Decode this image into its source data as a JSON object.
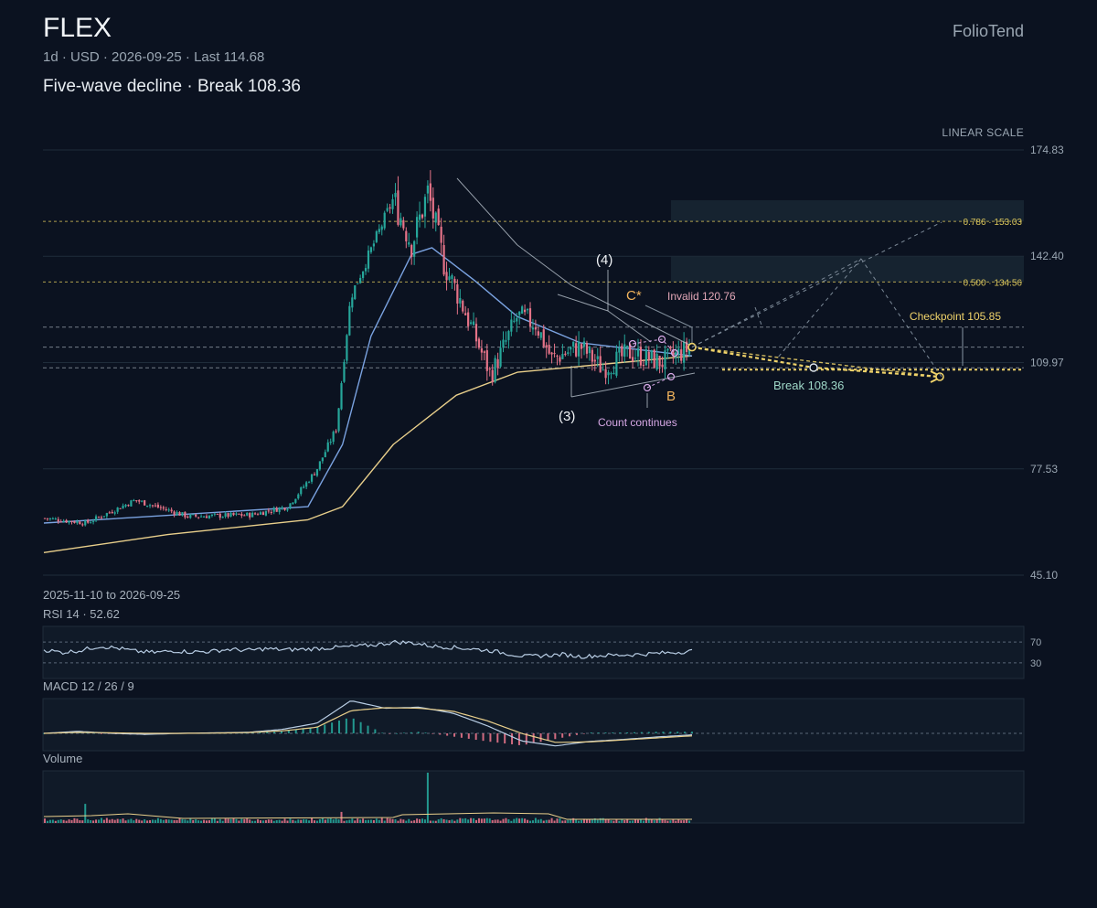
{
  "header": {
    "ticker": "FLEX",
    "subline": "1d · USD · 2026-09-25 · Last 114.68",
    "headline": "Five-wave decline · Break 108.36",
    "brand": "FolioTend",
    "scale_mode": "LINEAR SCALE",
    "date_range": "2025-11-10 to 2026-09-25"
  },
  "colors": {
    "background": "#0b1220",
    "up": "#26a69a",
    "down": "#e57388",
    "sma_fast": "#7aa2e0",
    "sma_slow": "#e9cf8b",
    "level": "#cdd6df",
    "fib": "#d9c45a",
    "projection": "#f0d36a",
    "wave_label": "#f2b45c",
    "count_label": "#d7a8e6"
  },
  "chart_data": [
    {
      "type": "candlestick",
      "period": "1d",
      "currency": "USD",
      "x_start": "2025-11-10",
      "x_end": "2026-09-25",
      "last": 114.68,
      "ylim": [
        45.1,
        174.83
      ],
      "y_ticks": [
        "174.83",
        "142.40",
        "109.97",
        "77.53",
        "45.10"
      ],
      "scale": "linear",
      "key_points": [
        {
          "date": "2025-11-10",
          "close": 62.5
        },
        {
          "date": "2025-12-01",
          "close": 61.0
        },
        {
          "date": "2025-12-25",
          "close": 68.0
        },
        {
          "date": "2026-01-20",
          "close": 63.0
        },
        {
          "date": "2026-02-20",
          "close": 63.5
        },
        {
          "date": "2026-03-10",
          "close": 66.0
        },
        {
          "date": "2026-03-24",
          "close": 77.0
        },
        {
          "date": "2026-04-03",
          "close": 90.0
        },
        {
          "date": "2026-04-10",
          "close": 130.0
        },
        {
          "date": "2026-04-24",
          "close": 150.0
        },
        {
          "date": "2026-05-01",
          "close": 160.0
        },
        {
          "date": "2026-05-10",
          "close": 146.0
        },
        {
          "date": "2026-05-18",
          "close": 162.0
        },
        {
          "date": "2026-05-26",
          "close": 140.0
        },
        {
          "date": "2026-06-03",
          "close": 129.0
        },
        {
          "date": "2026-06-18",
          "close": 106.0
        },
        {
          "date": "2026-07-01",
          "close": 124.0
        },
        {
          "date": "2026-07-10",
          "close": 122.0
        },
        {
          "date": "2026-07-18",
          "close": 111.0
        },
        {
          "date": "2026-08-01",
          "close": 115.0
        },
        {
          "date": "2026-08-12",
          "close": 108.0
        },
        {
          "date": "2026-08-25",
          "close": 113.0
        },
        {
          "date": "2026-09-10",
          "close": 110.0
        },
        {
          "date": "2026-09-25",
          "close": 114.68
        }
      ],
      "sma_fast_points": [
        {
          "date": "2025-11-10",
          "value": 61.0
        },
        {
          "date": "2026-03-20",
          "value": 66.0
        },
        {
          "date": "2026-04-06",
          "value": 85.0
        },
        {
          "date": "2026-04-20",
          "value": 118.0
        },
        {
          "date": "2026-05-10",
          "value": 143.0
        },
        {
          "date": "2026-05-20",
          "value": 145.0
        },
        {
          "date": "2026-06-10",
          "value": 135.0
        },
        {
          "date": "2026-07-01",
          "value": 124.0
        },
        {
          "date": "2026-08-01",
          "value": 116.0
        },
        {
          "date": "2026-09-25",
          "value": 112.0
        }
      ],
      "sma_slow_points": [
        {
          "date": "2025-11-10",
          "value": 52.0
        },
        {
          "date": "2026-01-10",
          "value": 57.5
        },
        {
          "date": "2026-03-20",
          "value": 62.0
        },
        {
          "date": "2026-04-06",
          "value": 66.0
        },
        {
          "date": "2026-05-01",
          "value": 85.0
        },
        {
          "date": "2026-06-01",
          "value": 100.0
        },
        {
          "date": "2026-07-01",
          "value": 107.0
        },
        {
          "date": "2026-09-25",
          "value": 112.0
        }
      ],
      "levels": [
        {
          "value": 153.03,
          "label": "0.786 · 153.03",
          "style": "fib"
        },
        {
          "value": 134.56,
          "label": "0.500 · 134.56",
          "style": "fib"
        },
        {
          "value": 120.76,
          "label": "Invalid 120.76",
          "style": "level"
        },
        {
          "value": 114.68,
          "label": "",
          "style": "level"
        },
        {
          "value": 108.36,
          "label": "Break 108.36",
          "style": "level"
        },
        {
          "value": 105.85,
          "label": "Checkpoint 105.85",
          "style": "projection"
        }
      ],
      "zones": [
        {
          "from": 153.03,
          "to": 159.5
        },
        {
          "from": 134.56,
          "to": 142.4
        }
      ],
      "wave_labels": [
        {
          "text": "(4)",
          "date": "2026-07-01",
          "price": 128.0
        },
        {
          "text": "(3)",
          "date": "2026-06-18",
          "price": 99.5
        },
        {
          "text": "C*",
          "date": "2026-07-10",
          "price": 126.5
        },
        {
          "text": "B",
          "date": "2026-08-08",
          "price": 103.5
        },
        {
          "text": "Count continues",
          "date": "2026-08-01",
          "price": 98.0
        }
      ],
      "projection": {
        "from": {
          "date": "2026-09-25",
          "price": 114.68
        },
        "points": [
          {
            "date": "2026-11-20",
            "price": 109.0
          },
          {
            "date": "2027-01-05",
            "price": 108.36
          }
        ]
      }
    },
    {
      "type": "line",
      "name": "RSI 14",
      "label": "RSI 14 · 52.62",
      "last": 52.62,
      "levels": [
        70,
        30
      ],
      "level_labels": [
        "70",
        "30"
      ],
      "ylim": [
        0,
        100
      ],
      "points": [
        55,
        50,
        54,
        62,
        58,
        52,
        50,
        53,
        51,
        52,
        56,
        54,
        57,
        55,
        56,
        58,
        60,
        62,
        65,
        70,
        68,
        62,
        60,
        57,
        54,
        48,
        42,
        44,
        46,
        42,
        44,
        45,
        46,
        48,
        50,
        52.62
      ]
    },
    {
      "type": "line",
      "name": "MACD 12 / 26 / 9",
      "label": "MACD 12 / 26 / 9",
      "series": [
        {
          "name": "MACD",
          "values": [
            0,
            0.4,
            0,
            -0.2,
            0,
            0.1,
            0.2,
            0.8,
            2.0,
            6.5,
            5.0,
            5.2,
            4.0,
            1.5,
            -1.5,
            -2.5,
            -1.6,
            -1.2,
            -0.7,
            -0.3
          ]
        },
        {
          "name": "Signal",
          "values": [
            0,
            0.2,
            0.1,
            0,
            0,
            0.05,
            0.15,
            0.5,
            1.2,
            4.5,
            5.1,
            5.0,
            4.4,
            2.5,
            0,
            -1.8,
            -1.7,
            -1.3,
            -0.9,
            -0.5
          ]
        }
      ]
    },
    {
      "type": "bar",
      "name": "Volume",
      "label": "Volume",
      "spikes": [
        {
          "date": "2025-12-01",
          "relative": 0.38
        },
        {
          "date": "2026-04-06",
          "relative": 0.22
        },
        {
          "date": "2026-05-18",
          "relative": 1.0
        }
      ]
    }
  ]
}
